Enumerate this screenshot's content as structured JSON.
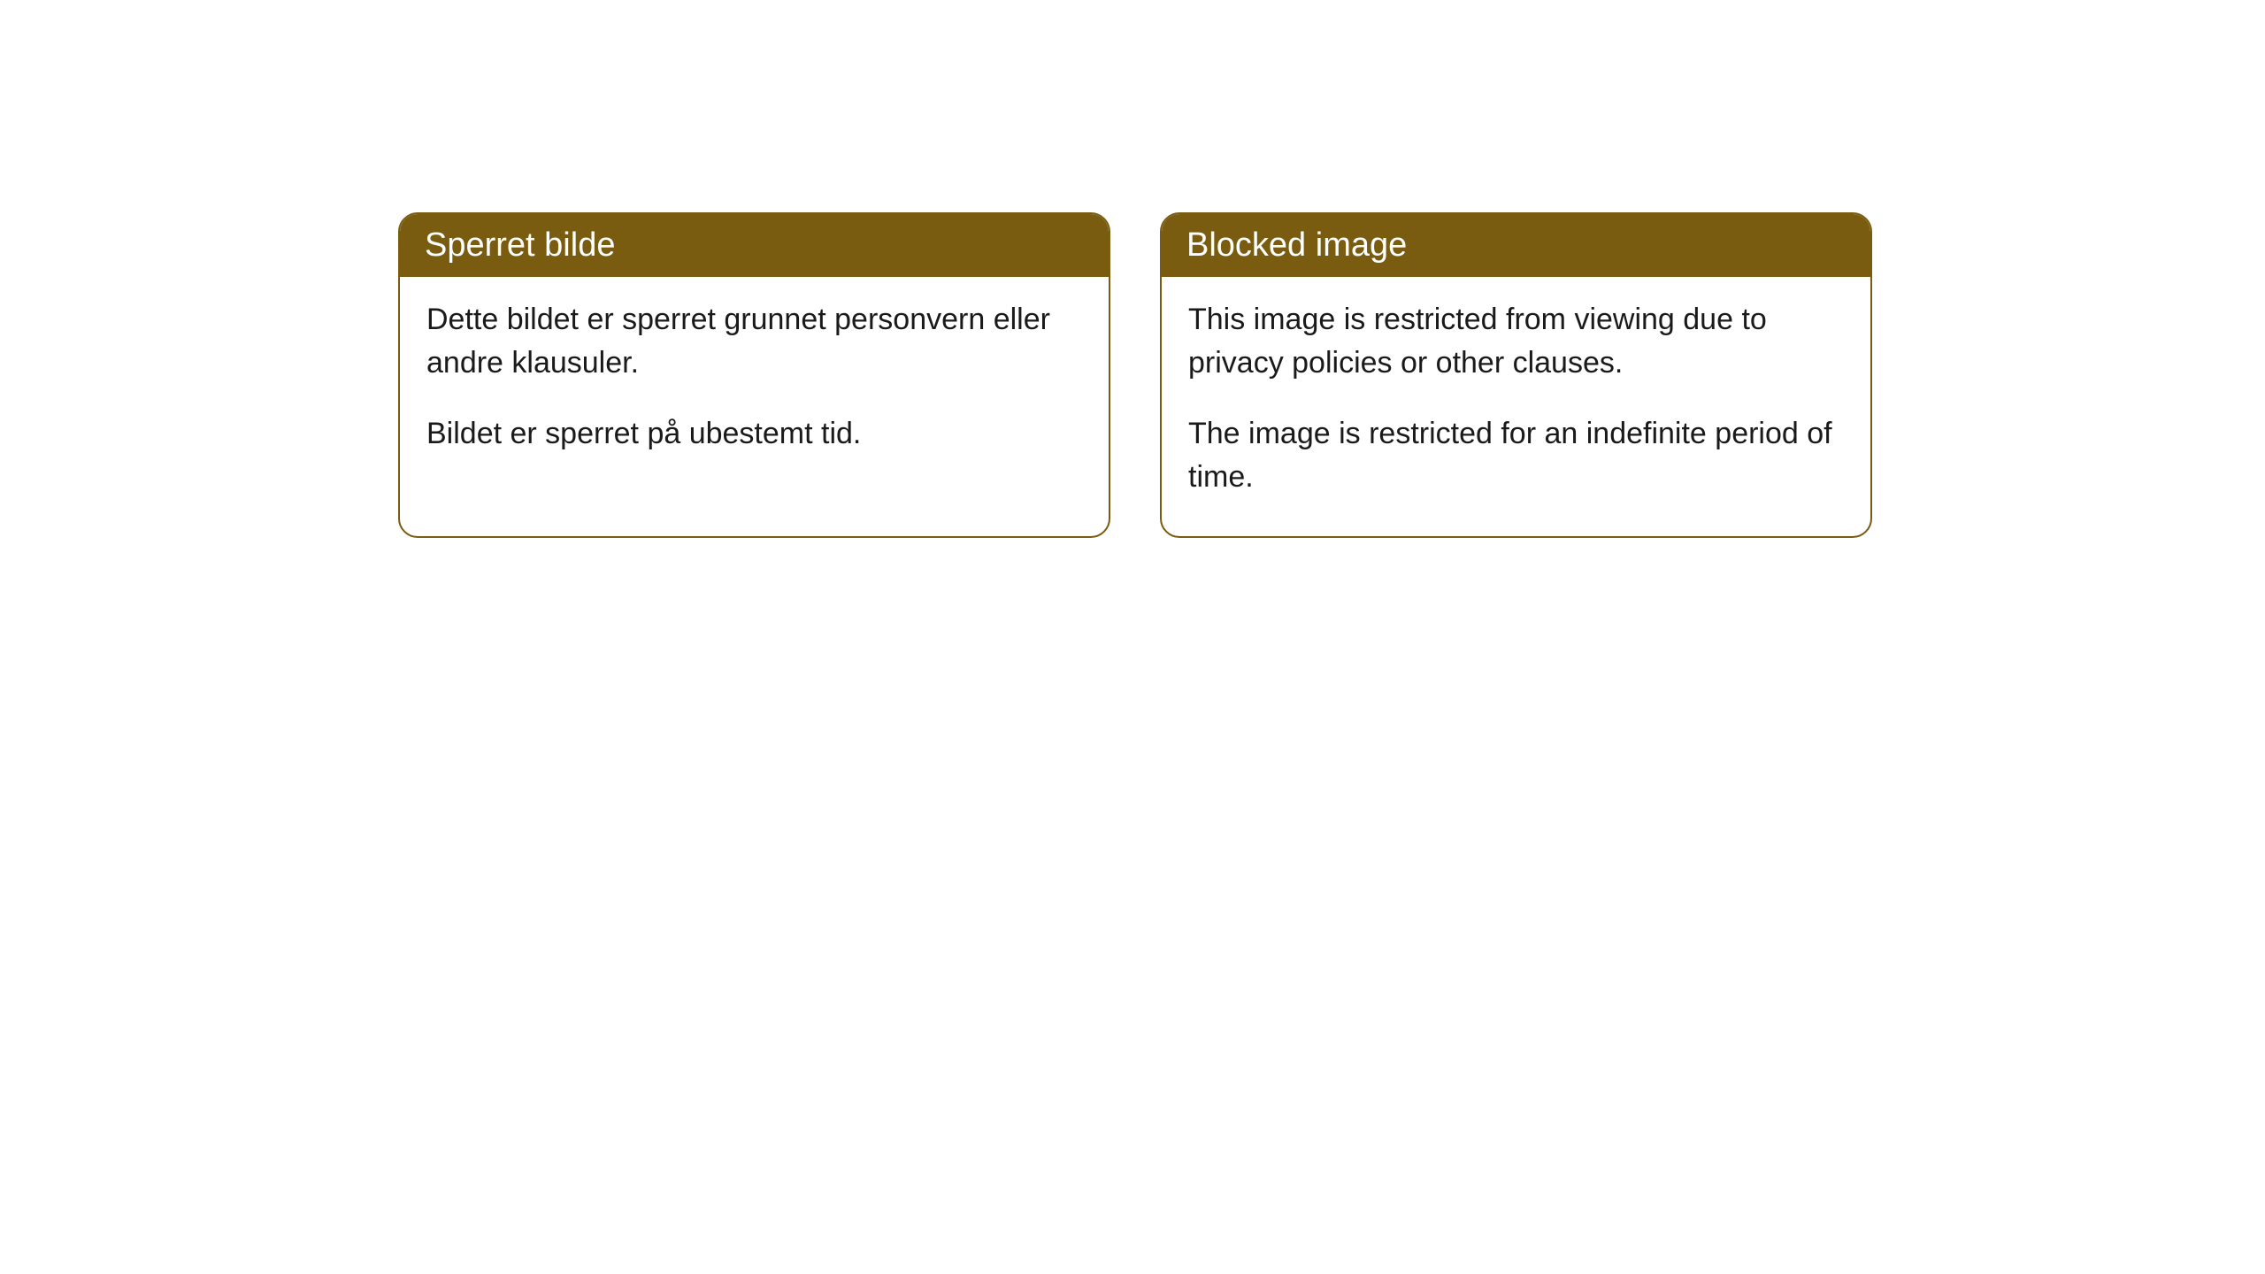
{
  "cards": [
    {
      "title": "Sperret bilde",
      "paragraph1": "Dette bildet er sperret grunnet personvern eller andre klausuler.",
      "paragraph2": "Bildet er sperret på ubestemt tid."
    },
    {
      "title": "Blocked image",
      "paragraph1": "This image is restricted from viewing due to privacy policies or other clauses.",
      "paragraph2": "The image is restricted for an indefinite period of time."
    }
  ],
  "styling": {
    "header_background_color": "#7a5c10",
    "header_text_color": "#ffffff",
    "border_color": "#7a5c10",
    "body_text_color": "#1a1a1a",
    "card_background_color": "#ffffff",
    "page_background_color": "#ffffff",
    "border_radius": 22,
    "header_fontsize": 38,
    "body_fontsize": 34
  }
}
